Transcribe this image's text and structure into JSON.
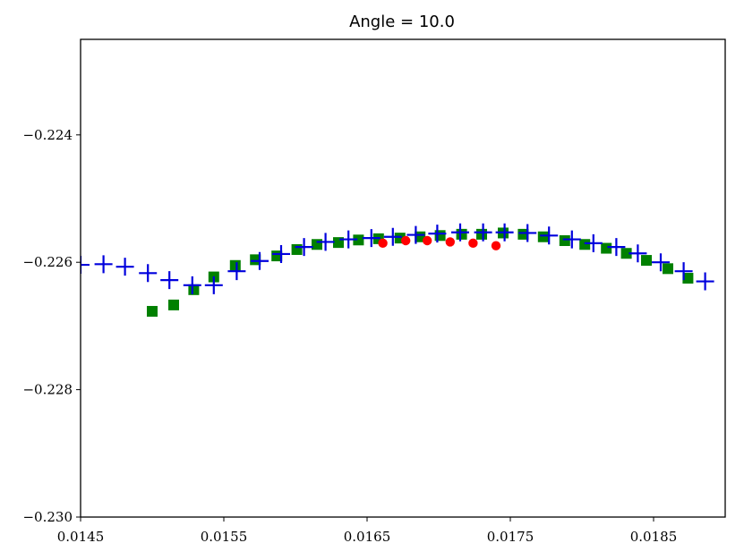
{
  "chart_data": {
    "type": "scatter",
    "title": "Angle = 10.0",
    "xlabel": "",
    "ylabel": "",
    "xlim": [
      0.0145,
      0.019
    ],
    "ylim": [
      -0.23,
      -0.2225
    ],
    "x_ticks": [
      0.0145,
      0.0155,
      0.0165,
      0.0175,
      0.0185
    ],
    "x_tick_labels": [
      "0.0145",
      "0.0155",
      "0.0165",
      "0.0175",
      "0.0185"
    ],
    "y_ticks": [
      -0.224,
      -0.226,
      -0.228,
      -0.23
    ],
    "y_tick_labels": [
      "−0.224",
      "−0.226",
      "−0.228",
      "−0.230"
    ],
    "grid": false,
    "legend": "none",
    "series": [
      {
        "marker": "square",
        "color": "#008000",
        "points": [
          [
            0.015,
            -0.22677
          ],
          [
            0.01515,
            -0.22667
          ],
          [
            0.01529,
            -0.22643
          ],
          [
            0.01543,
            -0.22623
          ],
          [
            0.01558,
            -0.22605
          ],
          [
            0.01572,
            -0.22596
          ],
          [
            0.01587,
            -0.2259
          ],
          [
            0.01601,
            -0.2258
          ],
          [
            0.01615,
            -0.22572
          ],
          [
            0.0163,
            -0.22569
          ],
          [
            0.01644,
            -0.22565
          ],
          [
            0.01658,
            -0.22563
          ],
          [
            0.01673,
            -0.22562
          ],
          [
            0.01687,
            -0.2256
          ],
          [
            0.01701,
            -0.22558
          ],
          [
            0.01716,
            -0.22556
          ],
          [
            0.0173,
            -0.22556
          ],
          [
            0.01745,
            -0.22554
          ],
          [
            0.01759,
            -0.22556
          ],
          [
            0.01773,
            -0.2256
          ],
          [
            0.01788,
            -0.22566
          ],
          [
            0.01802,
            -0.22572
          ],
          [
            0.01817,
            -0.22578
          ],
          [
            0.01831,
            -0.22586
          ],
          [
            0.01845,
            -0.22597
          ],
          [
            0.0186,
            -0.2261
          ],
          [
            0.01874,
            -0.22625
          ]
        ]
      },
      {
        "marker": "circle",
        "color": "#ff0000",
        "points": [
          [
            0.01661,
            -0.2257
          ],
          [
            0.01677,
            -0.22566
          ],
          [
            0.01692,
            -0.22566
          ],
          [
            0.01708,
            -0.22568
          ],
          [
            0.01724,
            -0.2257
          ],
          [
            0.0174,
            -0.22574
          ]
        ]
      },
      {
        "marker": "plus",
        "color": "#0000dd",
        "points": [
          [
            0.0145,
            -0.22604
          ],
          [
            0.01466,
            -0.22603
          ],
          [
            0.01481,
            -0.22607
          ],
          [
            0.01497,
            -0.22617
          ],
          [
            0.01512,
            -0.22628
          ],
          [
            0.01528,
            -0.22636
          ],
          [
            0.01543,
            -0.22636
          ],
          [
            0.01559,
            -0.22614
          ],
          [
            0.01575,
            -0.22598
          ],
          [
            0.0159,
            -0.22587
          ],
          [
            0.01606,
            -0.22576
          ],
          [
            0.01621,
            -0.22568
          ],
          [
            0.01637,
            -0.22564
          ],
          [
            0.01653,
            -0.22562
          ],
          [
            0.01668,
            -0.2256
          ],
          [
            0.01684,
            -0.22557
          ],
          [
            0.01699,
            -0.22555
          ],
          [
            0.01715,
            -0.22553
          ],
          [
            0.01731,
            -0.22553
          ],
          [
            0.01746,
            -0.22553
          ],
          [
            0.01762,
            -0.22554
          ],
          [
            0.01777,
            -0.22558
          ],
          [
            0.01793,
            -0.22564
          ],
          [
            0.01808,
            -0.2257
          ],
          [
            0.01824,
            -0.22576
          ],
          [
            0.01839,
            -0.22586
          ],
          [
            0.01855,
            -0.226
          ],
          [
            0.01871,
            -0.22614
          ],
          [
            0.01886,
            -0.2263
          ]
        ]
      }
    ]
  }
}
